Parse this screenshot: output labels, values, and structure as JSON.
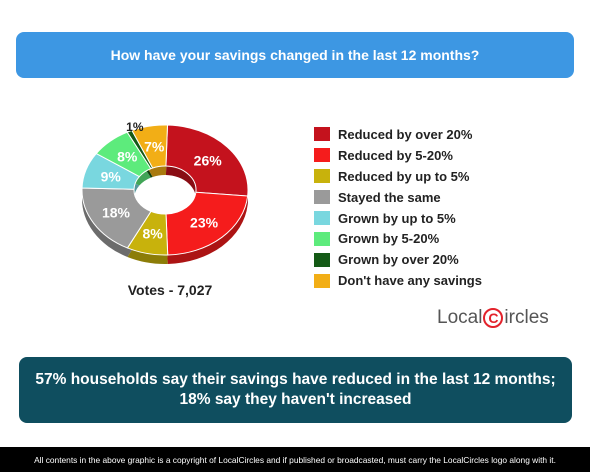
{
  "header": {
    "title": "How have your savings changed in the last 12 months?"
  },
  "chart_data": {
    "type": "pie",
    "title": "How have your savings changed in the last 12 months?",
    "categories": [
      "Reduced by over 20%",
      "Reduced by 5-20%",
      "Reduced by up to 5%",
      "Stayed the same",
      "Grown by up to 5%",
      "Grown by 5-20%",
      "Grown by over 20%",
      "Don't have any savings"
    ],
    "values": [
      26,
      23,
      8,
      18,
      9,
      8,
      1,
      7
    ],
    "value_labels": [
      "26%",
      "23%",
      "8%",
      "18%",
      "9%",
      "8%",
      "1%",
      "7%"
    ],
    "colors": [
      "#c4121d",
      "#f51c1c",
      "#c8b20c",
      "#9a9a9a",
      "#79d7df",
      "#5deb7c",
      "#145a16",
      "#f2ae16"
    ],
    "legend_position": "right",
    "donut": true
  },
  "legend": [
    {
      "label": "Reduced by over 20%",
      "color": "#c4121d"
    },
    {
      "label": "Reduced by 5-20%",
      "color": "#f51c1c"
    },
    {
      "label": "Reduced by up to 5%",
      "color": "#c8b20c"
    },
    {
      "label": "Stayed the same",
      "color": "#9a9a9a"
    },
    {
      "label": "Grown by up to 5%",
      "color": "#79d7df"
    },
    {
      "label": "Grown by 5-20%",
      "color": "#5deb7c"
    },
    {
      "label": "Grown by over 20%",
      "color": "#145a16"
    },
    {
      "label": "Don't have any savings",
      "color": "#f2ae16"
    }
  ],
  "votes": "Votes - 7,027",
  "logo": {
    "text_left": "Local",
    "c_letter": "C",
    "text_right": "ircles"
  },
  "summary": {
    "line1": "57% households say their savings have reduced in the last 12 months;",
    "line2": "18% say they haven't increased"
  },
  "footer": "All contents in the above graphic is a copyright of LocalCircles and if published or broadcasted, must carry the LocalCircles logo along with it."
}
